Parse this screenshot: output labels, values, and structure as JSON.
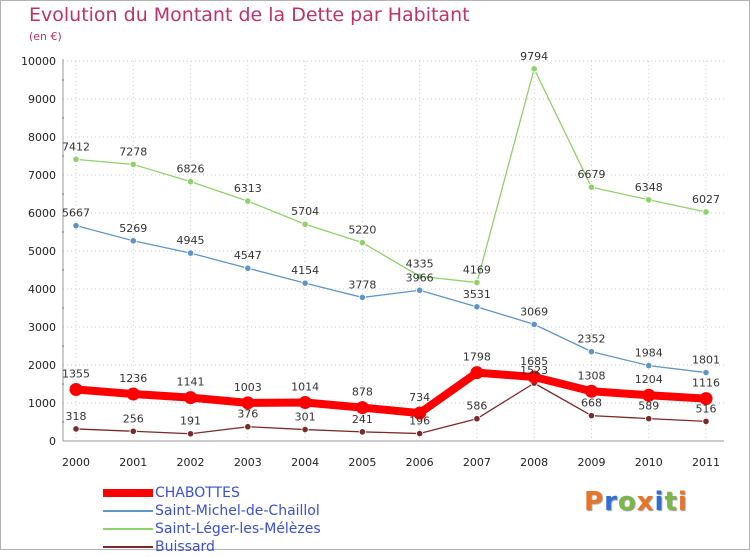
{
  "title": "Evolution du Montant de la Dette par Habitant",
  "subtitle": "(en €)",
  "logo": "Proxiti",
  "colors": {
    "title": "#c0306a",
    "legend_text": "#3a4fd6",
    "grid": "#cccccc",
    "axis": "#999999",
    "tick_dot": "#e05080"
  },
  "chart_data": {
    "type": "line",
    "title": "Evolution du Montant de la Dette par Habitant",
    "subtitle": "(en €)",
    "xlabel": "",
    "ylabel": "",
    "ylim": [
      0,
      10000
    ],
    "yticks": [
      0,
      1000,
      2000,
      3000,
      4000,
      5000,
      6000,
      7000,
      8000,
      9000,
      10000
    ],
    "grid": true,
    "legend_position": "bottom-left",
    "categories": [
      "2000",
      "2001",
      "2002",
      "2003",
      "2004",
      "2005",
      "2006",
      "2007",
      "2008",
      "2009",
      "2010",
      "2011"
    ],
    "series": [
      {
        "name": "CHABOTTES",
        "color": "#ff0000",
        "values": [
          1355,
          1236,
          1141,
          1003,
          1014,
          878,
          734,
          1798,
          1685,
          1308,
          1204,
          1116
        ]
      },
      {
        "name": "Saint-Michel-de-Chaillol",
        "color": "#5f95c8",
        "values": [
          5667,
          5269,
          4945,
          4547,
          4154,
          3778,
          3966,
          3531,
          3069,
          2352,
          1984,
          1801
        ]
      },
      {
        "name": "Saint-Léger-les-Mélèzes",
        "color": "#8fd16a",
        "values": [
          7412,
          7278,
          6826,
          6313,
          5704,
          5220,
          4335,
          4169,
          9794,
          6679,
          6348,
          6027
        ]
      },
      {
        "name": "Buissard",
        "color": "#7a2a2a",
        "values": [
          318,
          256,
          191,
          376,
          301,
          241,
          196,
          586,
          1523,
          668,
          589,
          516
        ]
      }
    ]
  }
}
